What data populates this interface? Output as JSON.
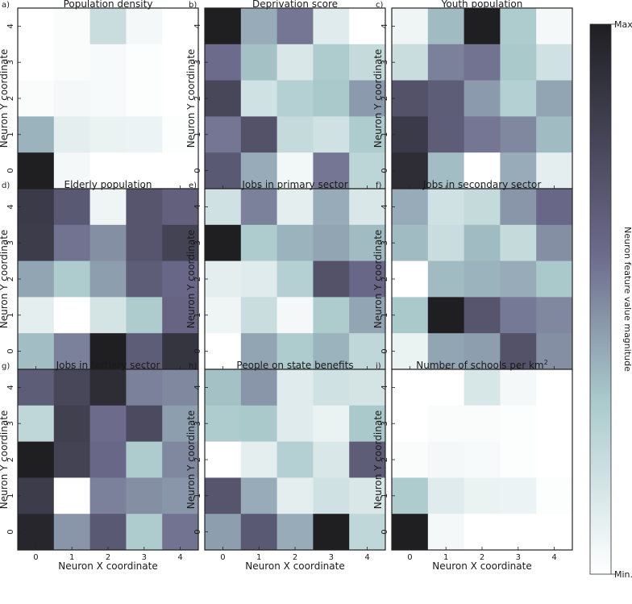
{
  "colors": {
    "max": "#1f1f22",
    "mid_purple": "#6d6b8c",
    "mid_teal": "#a9c9cb",
    "min": "#ffffff"
  },
  "colorbar": {
    "max_label": "Max",
    "min_label": "Min.",
    "axis_label": "Neuron feature value magnitude"
  },
  "chart_data": [
    {
      "id": "a",
      "letter": "a)",
      "type": "heatmap",
      "title": "Population density",
      "title_sup": "",
      "xlabel": "Neuron X coordinate",
      "ylabel": "Neuron Y coordinate",
      "x": [
        "0",
        "1",
        "2",
        "3",
        "4"
      ],
      "y": [
        "0",
        "1",
        "2",
        "3",
        "4"
      ],
      "values": [
        [
          0.0,
          0.02,
          0.2,
          0.04,
          0.0
        ],
        [
          0.0,
          0.02,
          0.03,
          0.01,
          0.0
        ],
        [
          0.02,
          0.04,
          0.03,
          0.01,
          0.0
        ],
        [
          0.38,
          0.1,
          0.08,
          0.07,
          0.01
        ],
        [
          1.0,
          0.04,
          0.0,
          0.0,
          0.0
        ]
      ]
    },
    {
      "id": "b",
      "letter": "b)",
      "type": "heatmap",
      "title": "Deprivation score",
      "title_sup": "",
      "xlabel": "Neuron X coordinate",
      "ylabel": "Neuron Y coordinate",
      "x": [
        "0",
        "1",
        "2",
        "3",
        "4"
      ],
      "y": [
        "0",
        "1",
        "2",
        "3",
        "4"
      ],
      "values": [
        [
          1.0,
          0.4,
          0.55,
          0.12,
          0.0
        ],
        [
          0.58,
          0.34,
          0.14,
          0.3,
          0.22
        ],
        [
          0.78,
          0.18,
          0.28,
          0.32,
          0.45
        ],
        [
          0.55,
          0.72,
          0.22,
          0.18,
          0.3
        ],
        [
          0.68,
          0.4,
          0.05,
          0.55,
          0.25
        ]
      ]
    },
    {
      "id": "c",
      "letter": "c)",
      "type": "heatmap",
      "title": "Youth population",
      "title_sup": "",
      "xlabel": "Neuron X coordinate",
      "ylabel": "Neuron Y coordinate",
      "x": [
        "0",
        "1",
        "2",
        "3",
        "4"
      ],
      "y": [
        "0",
        "1",
        "2",
        "3",
        "4"
      ],
      "values": [
        [
          0.06,
          0.36,
          1.0,
          0.3,
          0.04
        ],
        [
          0.2,
          0.52,
          0.56,
          0.32,
          0.18
        ],
        [
          0.72,
          0.66,
          0.45,
          0.28,
          0.42
        ],
        [
          0.85,
          0.66,
          0.55,
          0.5,
          0.36
        ],
        [
          0.92,
          0.35,
          0.0,
          0.4,
          0.1
        ]
      ]
    },
    {
      "id": "d",
      "letter": "d)",
      "type": "heatmap",
      "title": "Elderly population",
      "title_sup": "",
      "xlabel": "Neuron X coordinate",
      "ylabel": "Neuron Y coordinate",
      "x": [
        "0",
        "1",
        "2",
        "3",
        "4"
      ],
      "y": [
        "0",
        "1",
        "2",
        "3",
        "4"
      ],
      "values": [
        [
          0.85,
          0.68,
          0.06,
          0.7,
          0.64
        ],
        [
          0.84,
          0.56,
          0.48,
          0.7,
          0.8
        ],
        [
          0.42,
          0.3,
          0.44,
          0.66,
          0.6
        ],
        [
          0.1,
          0.0,
          0.16,
          0.3,
          0.62
        ],
        [
          0.35,
          0.52,
          1.0,
          0.66,
          0.88
        ]
      ]
    },
    {
      "id": "e",
      "letter": "e)",
      "type": "heatmap",
      "title": "Jobs in primary sector",
      "title_sup": "",
      "xlabel": "Neuron X coordinate",
      "ylabel": "Neuron Y coordinate",
      "x": [
        "0",
        "1",
        "2",
        "3",
        "4"
      ],
      "y": [
        "0",
        "1",
        "2",
        "3",
        "4"
      ],
      "values": [
        [
          0.18,
          0.52,
          0.1,
          0.4,
          0.14
        ],
        [
          1.0,
          0.3,
          0.38,
          0.42,
          0.36
        ],
        [
          0.1,
          0.12,
          0.28,
          0.72,
          0.6
        ],
        [
          0.06,
          0.2,
          0.04,
          0.3,
          0.42
        ],
        [
          0.0,
          0.42,
          0.3,
          0.38,
          0.24
        ]
      ]
    },
    {
      "id": "f",
      "letter": "f)",
      "type": "heatmap",
      "title": "Jobs in secondary sector",
      "title_sup": "",
      "xlabel": "Neuron X coordinate",
      "ylabel": "Neuron Y coordinate",
      "x": [
        "0",
        "1",
        "2",
        "3",
        "4"
      ],
      "y": [
        "0",
        "1",
        "2",
        "3",
        "4"
      ],
      "values": [
        [
          0.4,
          0.18,
          0.22,
          0.46,
          0.6
        ],
        [
          0.36,
          0.2,
          0.36,
          0.22,
          0.48
        ],
        [
          0.0,
          0.36,
          0.38,
          0.4,
          0.32
        ],
        [
          0.32,
          1.0,
          0.7,
          0.54,
          0.5
        ],
        [
          0.08,
          0.42,
          0.44,
          0.72,
          0.48
        ]
      ]
    },
    {
      "id": "g",
      "letter": "g)",
      "type": "heatmap",
      "title": "Jobs in tertiary sector",
      "title_sup": "",
      "xlabel": "Neuron X coordinate",
      "ylabel": "Neuron Y coordinate",
      "x": [
        "0",
        "1",
        "2",
        "3",
        "4"
      ],
      "y": [
        "0",
        "1",
        "2",
        "3",
        "4"
      ],
      "values": [
        [
          0.66,
          0.78,
          0.92,
          0.52,
          0.5
        ],
        [
          0.24,
          0.82,
          0.58,
          0.76,
          0.44
        ],
        [
          1.0,
          0.8,
          0.6,
          0.3,
          0.5
        ],
        [
          0.84,
          0.0,
          0.52,
          0.48,
          0.46
        ],
        [
          0.96,
          0.46,
          0.68,
          0.3,
          0.56
        ]
      ]
    },
    {
      "id": "h",
      "letter": "h)",
      "type": "heatmap",
      "title": "People on state benefits",
      "title_sup": "",
      "xlabel": "Neuron X coordinate",
      "ylabel": "Neuron Y coordinate",
      "x": [
        "0",
        "1",
        "2",
        "3",
        "4"
      ],
      "y": [
        "0",
        "1",
        "2",
        "3",
        "4"
      ],
      "values": [
        [
          0.34,
          0.46,
          0.12,
          0.18,
          0.16
        ],
        [
          0.3,
          0.32,
          0.12,
          0.08,
          0.32
        ],
        [
          0.0,
          0.1,
          0.28,
          0.14,
          0.66
        ],
        [
          0.7,
          0.4,
          0.1,
          0.18,
          0.14
        ],
        [
          0.44,
          0.68,
          0.4,
          1.0,
          0.24
        ]
      ]
    },
    {
      "id": "i",
      "letter": "i)",
      "type": "heatmap",
      "title": "Number of schools per km",
      "title_sup": "2",
      "xlabel": "Neuron X coordinate",
      "ylabel": "Neuron Y coordinate",
      "x": [
        "0",
        "1",
        "2",
        "3",
        "4"
      ],
      "y": [
        "0",
        "1",
        "2",
        "3",
        "4"
      ],
      "values": [
        [
          0.0,
          0.0,
          0.15,
          0.04,
          0.0
        ],
        [
          0.0,
          0.02,
          0.02,
          0.01,
          0.0
        ],
        [
          0.02,
          0.04,
          0.03,
          0.01,
          0.0
        ],
        [
          0.3,
          0.12,
          0.08,
          0.07,
          0.01
        ],
        [
          1.0,
          0.04,
          0.0,
          0.0,
          0.0
        ]
      ]
    }
  ]
}
